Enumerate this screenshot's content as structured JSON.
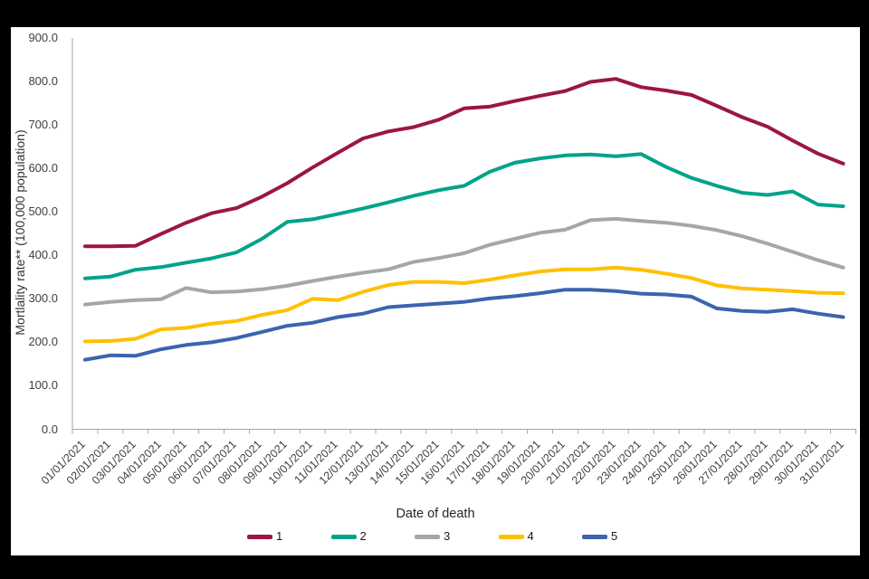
{
  "frame": {
    "background_color": "#000000",
    "canvas_background_color": "#FFFFFF"
  },
  "chart_data": {
    "type": "line",
    "title": "",
    "xlabel": "Date of death",
    "ylabel": "Mortlality rate** (100,000 population)",
    "ylim": [
      0,
      900
    ],
    "ytick_labels": [
      "0.0",
      "100.0",
      "200.0",
      "300.0",
      "400.0",
      "500.0",
      "600.0",
      "700.0",
      "800.0",
      "900.0"
    ],
    "grid": false,
    "legend_position": "bottom",
    "axis_color": "#A6A6A6",
    "label_color": "#404040",
    "categories": [
      "01/01/2021",
      "02/01/2021",
      "03/01/2021",
      "04/01/2021",
      "05/01/2021",
      "06/01/2021",
      "07/01/2021",
      "08/01/2021",
      "09/01/2021",
      "10/01/2021",
      "11/01/2021",
      "12/01/2021",
      "13/01/2021",
      "14/01/2021",
      "15/01/2021",
      "16/01/2021",
      "17/01/2021",
      "18/01/2021",
      "19/01/2021",
      "20/01/2021",
      "21/01/2021",
      "22/01/2021",
      "23/01/2021",
      "24/01/2021",
      "25/01/2021",
      "26/01/2021",
      "27/01/2021",
      "28/01/2021",
      "29/01/2021",
      "30/01/2021",
      "31/01/2021"
    ],
    "series": [
      {
        "name": "1",
        "color": "#9B1548",
        "values": [
          421,
          421,
          422,
          449,
          475,
          497,
          509,
          535,
          566,
          602,
          636,
          669,
          685,
          695,
          712,
          738,
          742,
          755,
          767,
          778,
          799,
          806,
          787,
          779,
          769,
          744,
          718,
          696,
          664,
          634,
          611
        ]
      },
      {
        "name": "2",
        "color": "#00A38A",
        "values": [
          347,
          351,
          367,
          373,
          383,
          393,
          407,
          438,
          477,
          483,
          495,
          508,
          522,
          537,
          550,
          560,
          592,
          613,
          623,
          630,
          632,
          628,
          633,
          603,
          578,
          560,
          544,
          539,
          547,
          517,
          513
        ]
      },
      {
        "name": "3",
        "color": "#A6A6A6",
        "values": [
          287,
          293,
          297,
          299,
          325,
          315,
          317,
          322,
          330,
          341,
          351,
          360,
          368,
          385,
          394,
          405,
          424,
          438,
          452,
          459,
          481,
          484,
          479,
          475,
          468,
          458,
          444,
          427,
          408,
          389,
          372
        ]
      },
      {
        "name": "4",
        "color": "#FFC000",
        "values": [
          202,
          203,
          208,
          230,
          233,
          243,
          249,
          263,
          274,
          300,
          297,
          316,
          332,
          339,
          339,
          336,
          344,
          354,
          363,
          368,
          368,
          372,
          367,
          358,
          348,
          331,
          324,
          321,
          318,
          314,
          313
        ]
      },
      {
        "name": "5",
        "color": "#3C64AE",
        "values": [
          160,
          170,
          169,
          184,
          194,
          200,
          210,
          224,
          238,
          245,
          258,
          266,
          281,
          285,
          289,
          293,
          301,
          306,
          313,
          321,
          321,
          318,
          312,
          310,
          305,
          278,
          272,
          270,
          276,
          266,
          258
        ]
      }
    ]
  }
}
